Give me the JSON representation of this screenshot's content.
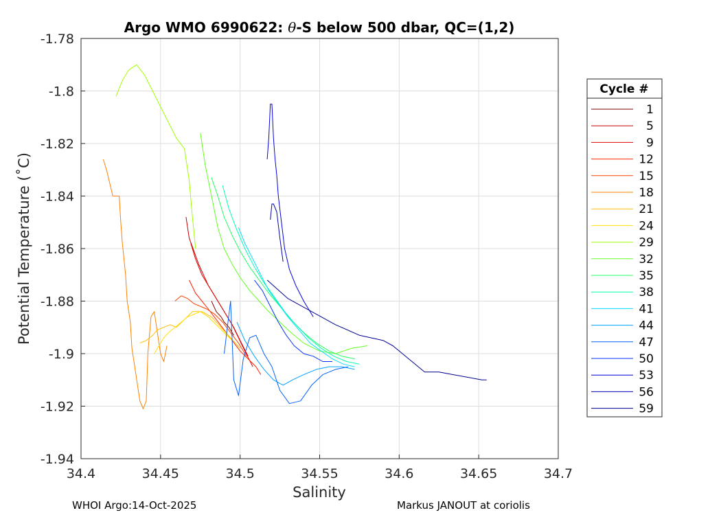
{
  "chart_data": {
    "type": "line",
    "title": "Argo WMO 6990622: θ-S below 500 dbar,  QC=(1,2)",
    "title_prefix": "Argo WMO 6990622: ",
    "title_theta": "θ",
    "title_suffix": "-S below 500 dbar,  QC=(1,2)",
    "xlabel": "Salinity",
    "ylabel": "Potential Temperature (˚C)",
    "xlim": [
      34.4,
      34.7
    ],
    "ylim": [
      -1.94,
      -1.78
    ],
    "xticks": [
      34.4,
      34.45,
      34.5,
      34.55,
      34.6,
      34.65,
      34.7
    ],
    "xtick_labels": [
      "34.4",
      "34.45",
      "34.5",
      "34.55",
      "34.6",
      "34.65",
      "34.7"
    ],
    "yticks": [
      -1.78,
      -1.8,
      -1.82,
      -1.84,
      -1.86,
      -1.88,
      -1.9,
      -1.92,
      -1.94
    ],
    "ytick_labels": [
      "-1.78",
      "-1.8",
      "-1.82",
      "-1.84",
      "-1.86",
      "-1.88",
      "-1.9",
      "-1.92",
      "-1.94"
    ],
    "grid": true,
    "legend": {
      "title": "Cycle #",
      "position": "right-outside",
      "entries": [
        "1",
        "5",
        "9",
        "12",
        "15",
        "18",
        "21",
        "24",
        "29",
        "32",
        "35",
        "38",
        "41",
        "44",
        "47",
        "50",
        "53",
        "56",
        "59"
      ],
      "colors": [
        "#800000",
        "#c00000",
        "#e00000",
        "#ff2000",
        "#ff4000",
        "#ff8000",
        "#ffc000",
        "#ffe000",
        "#a0ff00",
        "#60ff20",
        "#20ff60",
        "#00ffb0",
        "#00e0ff",
        "#00a0ff",
        "#0060ff",
        "#0030ff",
        "#0000e0",
        "#0000b0",
        "#000090"
      ]
    },
    "series": [
      {
        "name": "1",
        "color": "#800000",
        "x": [
          34.482,
          34.485,
          34.488,
          34.49,
          34.493,
          34.496
        ],
        "y": [
          -1.88,
          -1.884,
          -1.886,
          -1.888,
          -1.89,
          -1.893
        ]
      },
      {
        "name": "5",
        "color": "#c00000",
        "x": [
          34.466,
          34.468,
          34.471,
          34.474,
          34.477,
          34.48,
          34.484,
          34.488,
          34.492,
          34.496,
          34.5,
          34.505
        ],
        "y": [
          -1.848,
          -1.856,
          -1.861,
          -1.866,
          -1.87,
          -1.874,
          -1.878,
          -1.882,
          -1.886,
          -1.89,
          -1.895,
          -1.901
        ]
      },
      {
        "name": "9",
        "color": "#e00000",
        "x": [
          34.469,
          34.472,
          34.476,
          34.48,
          34.485,
          34.49,
          34.495,
          34.499,
          34.503,
          34.508
        ],
        "y": [
          -1.858,
          -1.864,
          -1.87,
          -1.874,
          -1.879,
          -1.884,
          -1.889,
          -1.894,
          -1.899,
          -1.905
        ]
      },
      {
        "name": "12",
        "color": "#ff2000",
        "x": [
          34.468,
          34.472,
          34.476,
          34.48,
          34.485,
          34.49,
          34.495,
          34.5,
          34.505,
          34.51,
          34.513
        ],
        "y": [
          -1.872,
          -1.877,
          -1.88,
          -1.883,
          -1.887,
          -1.891,
          -1.895,
          -1.899,
          -1.902,
          -1.905,
          -1.908
        ]
      },
      {
        "name": "15",
        "color": "#ff4000",
        "x": [
          34.459,
          34.463,
          34.467,
          34.471,
          34.475,
          34.479,
          34.484,
          34.489,
          34.494,
          34.499,
          34.504
        ],
        "y": [
          -1.88,
          -1.878,
          -1.879,
          -1.881,
          -1.882,
          -1.883,
          -1.885,
          -1.888,
          -1.892,
          -1.896,
          -1.901
        ]
      },
      {
        "name": "18",
        "color": "#ff8000",
        "x": [
          34.414,
          34.416,
          34.418,
          34.42,
          34.422,
          34.424,
          34.425,
          34.426,
          34.428,
          34.429,
          34.431,
          34.432,
          34.434,
          34.435,
          34.437,
          34.439,
          34.441,
          34.442,
          34.444,
          34.446,
          34.448,
          34.45,
          34.452,
          34.454
        ],
        "y": [
          -1.826,
          -1.83,
          -1.835,
          -1.84,
          -1.84,
          -1.84,
          -1.85,
          -1.858,
          -1.87,
          -1.88,
          -1.888,
          -1.898,
          -1.906,
          -1.91,
          -1.918,
          -1.921,
          -1.918,
          -1.9,
          -1.886,
          -1.884,
          -1.892,
          -1.9,
          -1.903,
          -1.897
        ]
      },
      {
        "name": "21",
        "color": "#ffc000",
        "x": [
          34.437,
          34.441,
          34.445,
          34.448,
          34.452,
          34.456,
          34.46,
          34.465,
          34.47,
          34.476,
          34.482,
          34.488,
          34.494,
          34.5
        ],
        "y": [
          -1.896,
          -1.895,
          -1.893,
          -1.891,
          -1.89,
          -1.889,
          -1.89,
          -1.887,
          -1.884,
          -1.884,
          -1.886,
          -1.89,
          -1.894,
          -1.898
        ]
      },
      {
        "name": "24",
        "color": "#ffe000",
        "x": [
          34.446,
          34.449,
          34.452,
          34.455,
          34.459,
          34.463,
          34.467,
          34.471,
          34.475,
          34.48,
          34.485,
          34.49,
          34.495
        ],
        "y": [
          -1.9,
          -1.897,
          -1.894,
          -1.892,
          -1.89,
          -1.888,
          -1.886,
          -1.885,
          -1.884,
          -1.886,
          -1.889,
          -1.892,
          -1.895
        ]
      },
      {
        "name": "29",
        "color": "#a0ff00",
        "x": [
          34.422,
          34.426,
          34.43,
          34.435,
          34.44,
          34.445,
          34.45,
          34.455,
          34.46,
          34.465,
          34.468,
          34.47,
          34.472
        ],
        "y": [
          -1.802,
          -1.796,
          -1.792,
          -1.79,
          -1.794,
          -1.8,
          -1.806,
          -1.812,
          -1.818,
          -1.822,
          -1.834,
          -1.848,
          -1.86
        ]
      },
      {
        "name": "32",
        "color": "#60ff20",
        "x": [
          34.475,
          34.478,
          34.482,
          34.486,
          34.49,
          34.495,
          34.5,
          34.506,
          34.512,
          34.518,
          34.525,
          34.532,
          34.54,
          34.55,
          34.56,
          34.57,
          34.58
        ],
        "y": [
          -1.816,
          -1.828,
          -1.84,
          -1.852,
          -1.86,
          -1.866,
          -1.871,
          -1.876,
          -1.88,
          -1.884,
          -1.888,
          -1.892,
          -1.896,
          -1.899,
          -1.9,
          -1.898,
          -1.897
        ]
      },
      {
        "name": "35",
        "color": "#20ff60",
        "x": [
          34.482,
          34.486,
          34.49,
          34.495,
          34.5,
          34.506,
          34.512,
          34.518,
          34.525,
          34.532,
          34.54,
          34.548,
          34.556,
          34.564,
          34.572
        ],
        "y": [
          -1.833,
          -1.84,
          -1.848,
          -1.855,
          -1.861,
          -1.867,
          -1.872,
          -1.877,
          -1.882,
          -1.887,
          -1.892,
          -1.896,
          -1.899,
          -1.901,
          -1.902
        ]
      },
      {
        "name": "38",
        "color": "#00ffb0",
        "x": [
          34.489,
          34.493,
          34.498,
          34.503,
          34.509,
          34.515,
          34.521,
          34.528,
          34.535,
          34.543,
          34.551,
          34.559,
          34.567,
          34.575
        ],
        "y": [
          -1.836,
          -1.845,
          -1.853,
          -1.86,
          -1.867,
          -1.873,
          -1.878,
          -1.884,
          -1.889,
          -1.894,
          -1.898,
          -1.901,
          -1.903,
          -1.904
        ]
      },
      {
        "name": "41",
        "color": "#00e0ff",
        "x": [
          34.499,
          34.503,
          34.508,
          34.513,
          34.518,
          34.524,
          34.53,
          34.537,
          34.544,
          34.551,
          34.558,
          34.565,
          34.572
        ],
        "y": [
          -1.852,
          -1.858,
          -1.864,
          -1.87,
          -1.876,
          -1.881,
          -1.886,
          -1.891,
          -1.896,
          -1.899,
          -1.902,
          -1.904,
          -1.905
        ]
      },
      {
        "name": "44",
        "color": "#00a0ff",
        "x": [
          34.498,
          34.503,
          34.509,
          34.515,
          34.521,
          34.527,
          34.533,
          34.54,
          34.548,
          34.556,
          34.564,
          34.572
        ],
        "y": [
          -1.888,
          -1.895,
          -1.901,
          -1.906,
          -1.91,
          -1.912,
          -1.91,
          -1.908,
          -1.906,
          -1.905,
          -1.905,
          -1.906
        ]
      },
      {
        "name": "47",
        "color": "#0060ff",
        "x": [
          34.49,
          34.492,
          34.494,
          34.496,
          34.499,
          34.502,
          34.506,
          34.51,
          34.515,
          34.52,
          34.525,
          34.531,
          34.538,
          34.545,
          34.552,
          34.56,
          34.568
        ],
        "y": [
          -1.9,
          -1.89,
          -1.88,
          -1.91,
          -1.916,
          -1.902,
          -1.894,
          -1.893,
          -1.9,
          -1.905,
          -1.914,
          -1.919,
          -1.918,
          -1.912,
          -1.908,
          -1.906,
          -1.905
        ]
      },
      {
        "name": "50",
        "color": "#0030ff",
        "x": [
          34.509,
          34.514,
          34.519,
          34.524,
          34.529,
          34.534,
          34.54,
          34.546,
          34.552,
          34.558
        ],
        "y": [
          -1.872,
          -1.876,
          -1.882,
          -1.888,
          -1.893,
          -1.897,
          -1.9,
          -1.901,
          -1.903,
          -1.903
        ]
      },
      {
        "name": "53",
        "color": "#0000e0",
        "x": [
          34.517,
          34.518,
          34.519,
          34.52,
          34.521,
          34.522,
          34.523,
          34.524,
          34.526,
          34.528,
          34.531,
          34.535,
          34.54,
          34.546
        ],
        "y": [
          -1.826,
          -1.818,
          -1.805,
          -1.805,
          -1.818,
          -1.826,
          -1.832,
          -1.84,
          -1.85,
          -1.86,
          -1.868,
          -1.874,
          -1.88,
          -1.886
        ]
      },
      {
        "name": "56",
        "color": "#0000b0",
        "x": [
          34.519,
          34.52,
          34.521,
          34.523,
          34.525,
          34.527
        ],
        "y": [
          -1.849,
          -1.843,
          -1.843,
          -1.846,
          -1.856,
          -1.865
        ]
      },
      {
        "name": "59",
        "color": "#000090",
        "x": [
          34.517,
          34.53,
          34.545,
          34.56,
          34.575,
          34.59,
          34.596,
          34.616,
          34.625,
          34.634,
          34.643,
          34.652,
          34.655
        ],
        "y": [
          -1.872,
          -1.879,
          -1.884,
          -1.889,
          -1.893,
          -1.895,
          -1.897,
          -1.907,
          -1.907,
          -1.908,
          -1.909,
          -1.91,
          -1.91
        ]
      }
    ]
  },
  "footer": {
    "left": "WHOI Argo:14-Oct-2025",
    "right": "Markus JANOUT at coriolis"
  }
}
